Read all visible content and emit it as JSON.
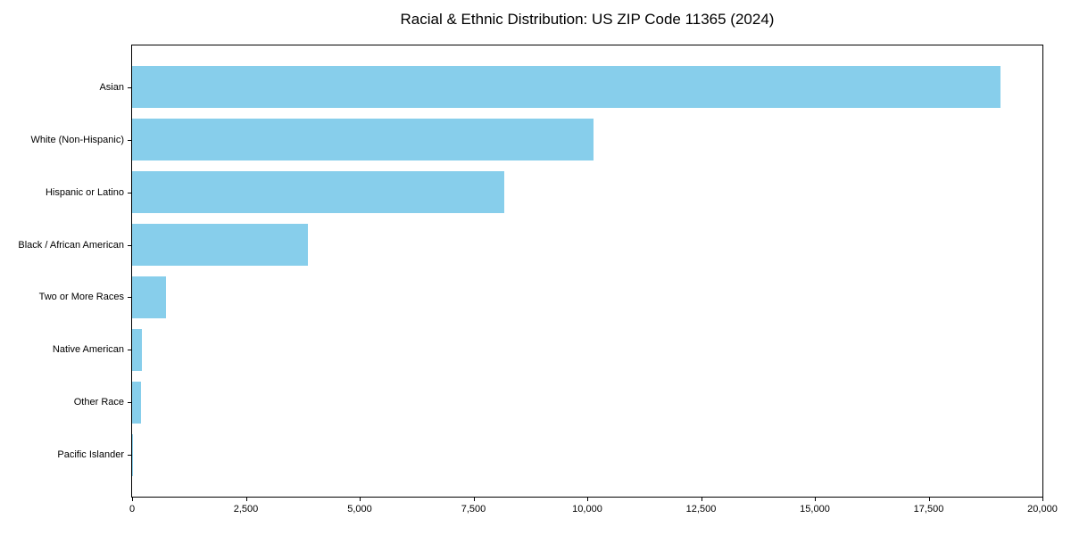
{
  "chart_data": {
    "type": "bar",
    "orientation": "horizontal",
    "title": "Racial & Ethnic Distribution: US ZIP Code 11365 (2024)",
    "categories": [
      "Asian",
      "White (Non-Hispanic)",
      "Hispanic or Latino",
      "Black / African American",
      "Two or More Races",
      "Native American",
      "Other Race",
      "Pacific Islander"
    ],
    "values": [
      19080,
      10140,
      8180,
      3860,
      745,
      215,
      195,
      10
    ],
    "xlabel": "",
    "ylabel": "",
    "xlim": [
      0,
      20000
    ],
    "xticks": [
      0,
      2500,
      5000,
      7500,
      10000,
      12500,
      15000,
      17500,
      20000
    ],
    "xtick_labels": [
      "0",
      "2,500",
      "5,000",
      "7,500",
      "10,000",
      "12,500",
      "15,000",
      "17,500",
      "20,000"
    ],
    "bar_color": "#87CEEB",
    "axis_color": "#000000",
    "background": "#ffffff",
    "grid": false,
    "legend": false
  }
}
